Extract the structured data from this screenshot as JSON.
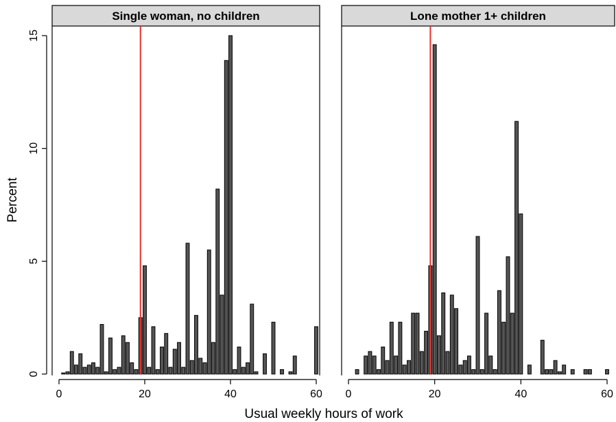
{
  "chart_data": {
    "type": "bar",
    "xlabel": "Usual weekly hours of work",
    "ylabel": "Percent",
    "xlim": [
      -2,
      62
    ],
    "ylim": [
      0,
      15.5
    ],
    "xticks": [
      0,
      20,
      40,
      60
    ],
    "yticks": [
      0,
      5,
      10,
      15
    ],
    "bar_color": "#555555",
    "reference_line_color": "#e8302a",
    "panels": [
      {
        "title": "Single woman, no children",
        "reference_line_x": 19,
        "x": [
          1,
          2,
          3,
          4,
          5,
          6,
          7,
          8,
          9,
          10,
          11,
          12,
          13,
          14,
          15,
          16,
          17,
          18,
          19,
          20,
          21,
          22,
          23,
          24,
          25,
          26,
          27,
          28,
          29,
          30,
          31,
          32,
          33,
          34,
          35,
          36,
          37,
          38,
          39,
          40,
          41,
          42,
          43,
          44,
          45,
          46,
          47,
          48,
          49,
          50,
          51,
          52,
          53,
          54,
          55,
          56,
          57,
          58,
          59,
          60
        ],
        "values": [
          0.05,
          0.1,
          1.0,
          0.4,
          0.9,
          0.3,
          0.4,
          0.5,
          0.3,
          2.2,
          0.1,
          1.6,
          0.2,
          0.3,
          1.7,
          1.4,
          0.5,
          0.2,
          2.5,
          4.8,
          0.3,
          2.1,
          0.2,
          1.2,
          1.8,
          0.3,
          1.1,
          1.4,
          0.3,
          5.8,
          0.6,
          2.6,
          0.7,
          0.5,
          5.5,
          1.4,
          8.2,
          3.5,
          13.9,
          15.0,
          0.2,
          1.2,
          0.3,
          0.5,
          3.1,
          0.1,
          0.0,
          0.9,
          0.0,
          2.3,
          0.0,
          0.2,
          0.0,
          0.1,
          0.8,
          0.0,
          0.0,
          0.0,
          0.0,
          2.1
        ]
      },
      {
        "title": "Lone mother 1+ children",
        "reference_line_x": 19,
        "x": [
          1,
          2,
          3,
          4,
          5,
          6,
          7,
          8,
          9,
          10,
          11,
          12,
          13,
          14,
          15,
          16,
          17,
          18,
          19,
          20,
          21,
          22,
          23,
          24,
          25,
          26,
          27,
          28,
          29,
          30,
          31,
          32,
          33,
          34,
          35,
          36,
          37,
          38,
          39,
          40,
          41,
          42,
          43,
          44,
          45,
          46,
          47,
          48,
          49,
          50,
          51,
          52,
          53,
          54,
          55,
          56,
          57,
          58,
          59,
          60
        ],
        "values": [
          0.0,
          0.2,
          0.0,
          0.8,
          1.0,
          0.8,
          0.2,
          1.2,
          0.6,
          2.3,
          0.8,
          2.3,
          0.4,
          0.6,
          2.7,
          2.7,
          1.0,
          1.9,
          4.8,
          14.6,
          1.7,
          3.6,
          1.0,
          3.5,
          2.9,
          0.4,
          0.6,
          0.8,
          0.2,
          6.1,
          0.2,
          2.7,
          0.8,
          0.2,
          3.7,
          2.3,
          5.2,
          2.7,
          11.2,
          7.1,
          0.0,
          0.4,
          0.0,
          0.0,
          1.5,
          0.2,
          0.2,
          0.6,
          0.1,
          0.4,
          0.0,
          0.2,
          0.0,
          0.0,
          0.2,
          0.2,
          0.0,
          0.0,
          0.0,
          0.2
        ]
      }
    ]
  }
}
